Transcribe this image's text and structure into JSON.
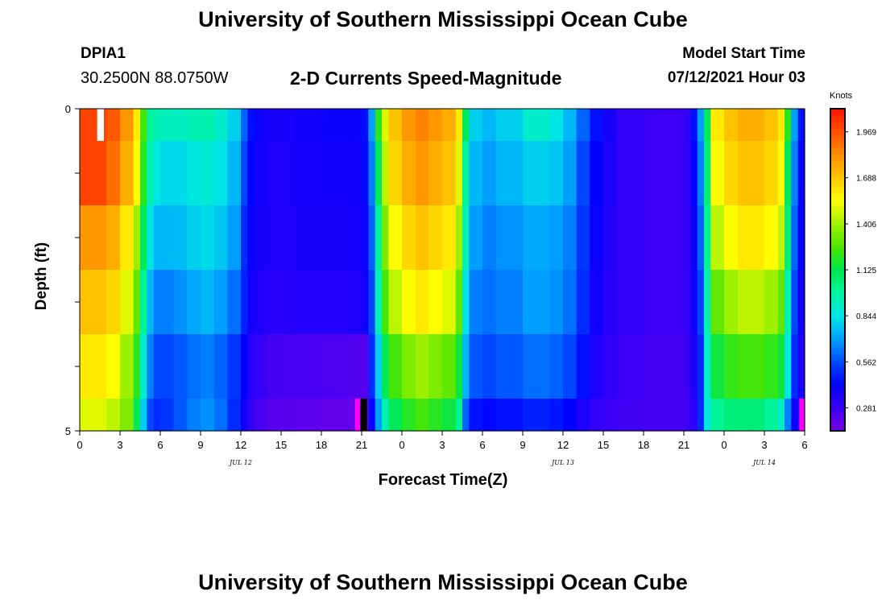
{
  "header": {
    "title": "University of Southern Mississippi Ocean Cube",
    "station": "DPIA1",
    "coords": "30.2500N  88.0750W",
    "subtitle": "2-D Currents Speed-Magnitude",
    "model_start_label": "Model Start Time",
    "model_start_value": "07/12/2021 Hour 03"
  },
  "footer": {
    "title": "University of Southern Mississippi Ocean Cube"
  },
  "chart_data": {
    "type": "heatmap",
    "title": "2-D Currents Speed-Magnitude",
    "xlabel": "Forecast Time(Z)",
    "ylabel": "Depth (ft)",
    "xlim": [
      0,
      54
    ],
    "ylim": [
      0,
      5
    ],
    "x_tick_labels": [
      "0",
      "3",
      "6",
      "9",
      "12",
      "15",
      "18",
      "21",
      "0",
      "3",
      "6",
      "9",
      "12",
      "15",
      "18",
      "21",
      "0",
      "3",
      "6"
    ],
    "y_tick_labels": [
      "0",
      "5"
    ],
    "date_labels": [
      {
        "text": "JUL 12",
        "hour": 12
      },
      {
        "text": "JUL 13",
        "hour": 36
      },
      {
        "text": "JUL 14",
        "hour": 51
      }
    ],
    "colorbar": {
      "title": "Knots",
      "ticks": [
        "1.969",
        "1.688",
        "1.406",
        "1.125",
        "0.844",
        "0.562",
        "0.281"
      ],
      "tick_values": [
        1.969,
        1.688,
        1.406,
        1.125,
        0.844,
        0.562,
        0.281
      ],
      "vmin": 0.14,
      "vmax": 2.11,
      "colors": [
        "#7a00e6",
        "#3a00f5",
        "#0000ff",
        "#004cff",
        "#00a0ff",
        "#00e6e6",
        "#00f5a0",
        "#00e64b",
        "#4be600",
        "#a0f000",
        "#ffff00",
        "#ffc800",
        "#ff8c00",
        "#ff5000",
        "#ff1400"
      ]
    },
    "time_nodes": [
      0,
      1,
      2,
      3,
      4,
      4.5,
      5,
      5.5,
      6,
      7,
      8,
      9,
      10,
      11,
      12,
      12.5,
      13,
      13.5,
      14,
      15,
      16,
      18,
      20,
      21,
      21.5,
      22,
      22.5,
      23,
      24,
      25,
      26,
      27,
      28,
      28.5,
      29,
      30,
      31,
      33,
      35,
      36,
      37,
      38,
      39,
      40,
      42,
      44,
      45,
      45.5,
      46,
      46.5,
      47,
      48,
      49,
      50,
      51,
      52,
      52.5,
      53,
      53.5,
      54
    ],
    "depth_layers": [
      {
        "depth": "0-0.5",
        "values": [
          2.0,
          2.0,
          1.95,
          1.8,
          1.6,
          1.25,
          1.0,
          0.95,
          0.93,
          0.92,
          0.95,
          0.96,
          0.9,
          0.8,
          0.6,
          0.45,
          0.4,
          0.38,
          0.36,
          0.36,
          0.38,
          0.4,
          0.4,
          0.45,
          0.7,
          1.2,
          1.5,
          1.7,
          1.8,
          1.85,
          1.8,
          1.75,
          1.6,
          1.1,
          0.8,
          0.75,
          0.8,
          0.9,
          0.85,
          0.75,
          0.6,
          0.45,
          0.36,
          0.3,
          0.28,
          0.28,
          0.3,
          0.45,
          0.7,
          1.1,
          1.6,
          1.7,
          1.75,
          1.75,
          1.7,
          1.6,
          1.2,
          0.7,
          0.45,
          0.4
        ]
      },
      {
        "depth": "0.5-1.5",
        "values": [
          2.0,
          2.0,
          1.9,
          1.75,
          1.55,
          1.2,
          0.95,
          0.85,
          0.82,
          0.82,
          0.86,
          0.88,
          0.84,
          0.75,
          0.55,
          0.42,
          0.38,
          0.37,
          0.35,
          0.35,
          0.37,
          0.38,
          0.38,
          0.43,
          0.65,
          1.1,
          1.45,
          1.65,
          1.75,
          1.8,
          1.75,
          1.7,
          1.5,
          1.0,
          0.75,
          0.7,
          0.75,
          0.8,
          0.78,
          0.7,
          0.55,
          0.42,
          0.35,
          0.3,
          0.28,
          0.28,
          0.3,
          0.42,
          0.65,
          1.05,
          1.55,
          1.65,
          1.7,
          1.7,
          1.65,
          1.55,
          1.1,
          0.65,
          0.42,
          0.38
        ]
      },
      {
        "depth": "1.5-2.5",
        "values": [
          1.8,
          1.8,
          1.75,
          1.6,
          1.4,
          1.1,
          0.85,
          0.75,
          0.75,
          0.76,
          0.8,
          0.82,
          0.78,
          0.7,
          0.5,
          0.4,
          0.37,
          0.36,
          0.35,
          0.35,
          0.36,
          0.36,
          0.37,
          0.4,
          0.6,
          1.0,
          1.35,
          1.55,
          1.65,
          1.7,
          1.65,
          1.6,
          1.4,
          0.95,
          0.7,
          0.65,
          0.68,
          0.72,
          0.7,
          0.65,
          0.52,
          0.4,
          0.34,
          0.3,
          0.28,
          0.28,
          0.3,
          0.4,
          0.6,
          1.0,
          1.45,
          1.55,
          1.6,
          1.6,
          1.55,
          1.45,
          1.05,
          0.6,
          0.4,
          0.36
        ]
      },
      {
        "depth": "2.5-3.5",
        "values": [
          1.7,
          1.7,
          1.65,
          1.5,
          1.3,
          1.0,
          0.75,
          0.65,
          0.65,
          0.68,
          0.72,
          0.75,
          0.7,
          0.62,
          0.48,
          0.38,
          0.35,
          0.34,
          0.33,
          0.33,
          0.34,
          0.34,
          0.35,
          0.38,
          0.55,
          0.95,
          1.25,
          1.45,
          1.55,
          1.6,
          1.55,
          1.5,
          1.3,
          0.85,
          0.65,
          0.62,
          0.65,
          0.7,
          0.68,
          0.62,
          0.5,
          0.38,
          0.33,
          0.3,
          0.28,
          0.28,
          0.3,
          0.38,
          0.55,
          0.95,
          1.3,
          1.4,
          1.45,
          1.45,
          1.4,
          1.3,
          0.95,
          0.55,
          0.38,
          0.35
        ]
      },
      {
        "depth": "3.5-4.5",
        "values": [
          1.6,
          1.6,
          1.55,
          1.4,
          1.2,
          0.9,
          0.65,
          0.55,
          0.55,
          0.58,
          0.62,
          0.65,
          0.6,
          0.52,
          0.42,
          0.33,
          0.3,
          0.28,
          0.26,
          0.25,
          0.25,
          0.24,
          0.23,
          0.22,
          0.5,
          0.8,
          1.1,
          1.25,
          1.35,
          1.4,
          1.35,
          1.3,
          1.15,
          0.75,
          0.58,
          0.55,
          0.58,
          0.62,
          0.6,
          0.55,
          0.45,
          0.35,
          0.31,
          0.28,
          0.26,
          0.26,
          0.28,
          0.35,
          0.5,
          0.9,
          1.15,
          1.22,
          1.25,
          1.25,
          1.22,
          1.15,
          0.85,
          0.5,
          0.36,
          0.34
        ]
      },
      {
        "depth": "4.5-5",
        "values": [
          1.5,
          1.5,
          1.45,
          1.35,
          1.1,
          0.8,
          0.55,
          0.5,
          0.52,
          0.58,
          0.65,
          0.68,
          0.62,
          0.5,
          0.38,
          0.3,
          0.26,
          0.24,
          0.22,
          0.21,
          0.2,
          0.19,
          0.18,
          0.18,
          0.4,
          0.7,
          0.95,
          1.1,
          1.2,
          1.25,
          1.2,
          1.15,
          1.0,
          0.6,
          0.45,
          0.43,
          0.45,
          0.48,
          0.46,
          0.42,
          0.35,
          0.3,
          0.28,
          0.27,
          0.26,
          0.26,
          0.28,
          0.32,
          0.5,
          0.85,
          1.0,
          1.05,
          1.05,
          1.05,
          1.0,
          0.9,
          0.65,
          0.4,
          0.3,
          0.22
        ]
      }
    ],
    "missing_cells": [
      {
        "layer": 0,
        "hour_start": 1.3,
        "hour_end": 1.8,
        "depth_range": "0-0.5",
        "color": "#ffffff"
      },
      {
        "layer": 5,
        "hour_start": 20.5,
        "hour_end": 20.9,
        "depth_range": "4.5-5",
        "color": "#ff00ff"
      },
      {
        "layer": 5,
        "hour_start": 20.9,
        "hour_end": 21.4,
        "depth_range": "4.5-5",
        "color": "#000000"
      },
      {
        "layer": 5,
        "hour_start": 53.6,
        "hour_end": 54.0,
        "depth_range": "4.5-5",
        "color": "#ff00ff"
      }
    ]
  }
}
